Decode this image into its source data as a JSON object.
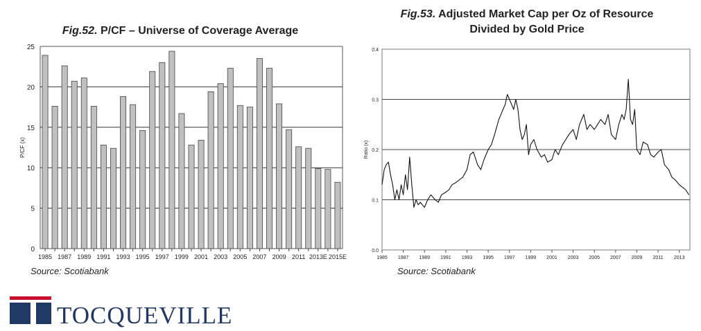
{
  "fig52": {
    "number": "Fig.52.",
    "title": "P/CF – Universe of Coverage Average",
    "source": "Source: Scotiabank"
  },
  "fig53": {
    "number": "Fig.53.",
    "title_line1": "Adjusted Market Cap per Oz of Resource",
    "title_line2": "Divided by Gold Price",
    "source": "Source: Scotiabank"
  },
  "logo": {
    "text": "TOCQUEVILLE",
    "colors": {
      "red": "#c8102e",
      "blue": "#1f3864"
    }
  },
  "chart_data": [
    {
      "type": "bar",
      "title": "P/CF – Universe of Coverage Average",
      "ylabel": "P/CF (x)",
      "xlabel": "",
      "ylim": [
        0,
        25
      ],
      "yticks": [
        0,
        5,
        10,
        15,
        20,
        25
      ],
      "grid": true,
      "bar_color": "#c0c0c0",
      "categories": [
        "1985",
        "1986",
        "1987",
        "1988",
        "1989",
        "1990",
        "1991",
        "1992",
        "1993",
        "1994",
        "1995",
        "1996",
        "1997",
        "1998",
        "1999",
        "2000",
        "2001",
        "2002",
        "2003",
        "2004",
        "2005",
        "2006",
        "2007",
        "2008",
        "2009",
        "2010",
        "2011",
        "2012",
        "2013E",
        "2014E",
        "2015E"
      ],
      "tick_labels": [
        "1985",
        "",
        "1987",
        "",
        "1989",
        "",
        "1991",
        "",
        "1993",
        "",
        "1995",
        "",
        "1997",
        "",
        "1999",
        "",
        "2001",
        "",
        "2003",
        "",
        "2005",
        "",
        "2007",
        "",
        "2009",
        "",
        "2011",
        "",
        "2013E",
        "",
        "2015E"
      ],
      "values": [
        23.9,
        17.6,
        22.6,
        20.7,
        21.1,
        17.6,
        12.8,
        12.4,
        18.8,
        17.8,
        14.6,
        21.9,
        23.0,
        24.4,
        16.7,
        12.8,
        13.4,
        19.4,
        20.4,
        22.3,
        17.7,
        17.5,
        23.5,
        22.3,
        17.9,
        14.7,
        12.6,
        12.4,
        9.9,
        9.8,
        8.2
      ]
    },
    {
      "type": "line",
      "title": "Adjusted Market Cap per Oz of Resource Divided by Gold Price",
      "ylabel": "Ratio (x)",
      "xlabel": "",
      "ylim": [
        0.0,
        0.4
      ],
      "xlim": [
        1985,
        2014
      ],
      "yticks": [
        0.0,
        0.1,
        0.2,
        0.3,
        0.4
      ],
      "ytick_labels": [
        "0.0",
        "0.1",
        "0.2",
        "0.3",
        "0.4"
      ],
      "xticks": [
        1985,
        1987,
        1989,
        1991,
        1993,
        1995,
        1997,
        1999,
        2001,
        2003,
        2005,
        2007,
        2009,
        2011,
        2013
      ],
      "grid": true,
      "series": [
        {
          "x": [
            1985.0,
            1985.2,
            1985.4,
            1985.6,
            1985.8,
            1986.0,
            1986.2,
            1986.4,
            1986.6,
            1986.8,
            1987.0,
            1987.2,
            1987.4,
            1987.6,
            1987.8,
            1988.0,
            1988.2,
            1988.4,
            1988.6,
            1988.8,
            1989.0,
            1989.3,
            1989.6,
            1990.0,
            1990.3,
            1990.6,
            1991.0,
            1991.3,
            1991.6,
            1992.0,
            1992.3,
            1992.6,
            1993.0,
            1993.3,
            1993.6,
            1994.0,
            1994.3,
            1994.6,
            1995.0,
            1995.3,
            1995.6,
            1996.0,
            1996.2,
            1996.4,
            1996.6,
            1996.8,
            1997.0,
            1997.2,
            1997.4,
            1997.6,
            1997.8,
            1998.0,
            1998.2,
            1998.4,
            1998.6,
            1998.8,
            1999.0,
            1999.3,
            1999.6,
            2000.0,
            2000.3,
            2000.6,
            2001.0,
            2001.3,
            2001.6,
            2002.0,
            2002.3,
            2002.6,
            2003.0,
            2003.3,
            2003.6,
            2004.0,
            2004.3,
            2004.6,
            2005.0,
            2005.3,
            2005.6,
            2006.0,
            2006.3,
            2006.6,
            2007.0,
            2007.3,
            2007.6,
            2007.8,
            2008.0,
            2008.2,
            2008.4,
            2008.6,
            2008.8,
            2009.0,
            2009.3,
            2009.6,
            2010.0,
            2010.3,
            2010.6,
            2011.0,
            2011.3,
            2011.6,
            2012.0,
            2012.3,
            2012.6,
            2013.0,
            2013.3,
            2013.6,
            2013.9
          ],
          "y": [
            0.13,
            0.16,
            0.17,
            0.175,
            0.15,
            0.13,
            0.1,
            0.12,
            0.1,
            0.13,
            0.11,
            0.15,
            0.12,
            0.185,
            0.13,
            0.085,
            0.1,
            0.09,
            0.095,
            0.09,
            0.085,
            0.1,
            0.11,
            0.1,
            0.095,
            0.11,
            0.115,
            0.12,
            0.13,
            0.135,
            0.14,
            0.145,
            0.16,
            0.19,
            0.195,
            0.17,
            0.16,
            0.18,
            0.2,
            0.21,
            0.23,
            0.26,
            0.27,
            0.28,
            0.29,
            0.31,
            0.3,
            0.29,
            0.28,
            0.3,
            0.28,
            0.24,
            0.22,
            0.23,
            0.25,
            0.19,
            0.21,
            0.22,
            0.2,
            0.185,
            0.19,
            0.175,
            0.18,
            0.2,
            0.19,
            0.21,
            0.22,
            0.23,
            0.24,
            0.22,
            0.25,
            0.27,
            0.24,
            0.25,
            0.24,
            0.25,
            0.26,
            0.25,
            0.27,
            0.23,
            0.22,
            0.25,
            0.27,
            0.26,
            0.28,
            0.34,
            0.26,
            0.25,
            0.28,
            0.2,
            0.19,
            0.215,
            0.21,
            0.19,
            0.185,
            0.195,
            0.2,
            0.17,
            0.16,
            0.145,
            0.14,
            0.13,
            0.125,
            0.12,
            0.11
          ]
        }
      ]
    }
  ]
}
